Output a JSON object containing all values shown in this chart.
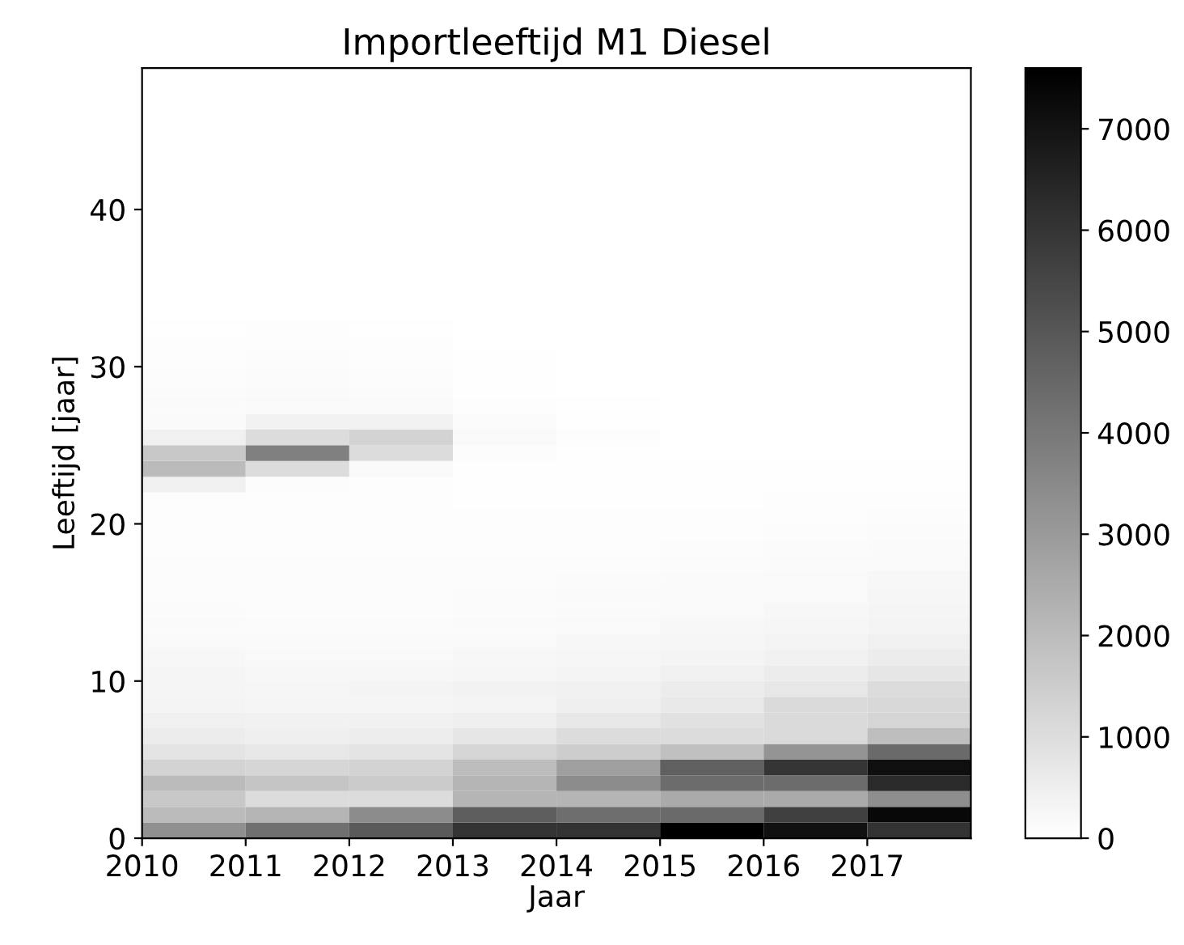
{
  "chart_data": {
    "type": "heatmap",
    "title": "Importleeftijd M1 Diesel",
    "xlabel": "Jaar",
    "ylabel": "Leeftijd [jaar]",
    "x": [
      2010.5,
      2011.5,
      2012.5,
      2013.5,
      2014.5,
      2015.5,
      2016.5,
      2017.5
    ],
    "xlim": [
      2010,
      2018
    ],
    "xticks": [
      2010,
      2011,
      2012,
      2013,
      2014,
      2015,
      2016,
      2017
    ],
    "ylim": [
      0,
      49
    ],
    "yticks": [
      0,
      10,
      20,
      30,
      40
    ],
    "clim": [
      0,
      7600
    ],
    "cticks": [
      0,
      1000,
      2000,
      3000,
      4000,
      5000,
      6000,
      7000
    ],
    "cells": [
      [
        0,
        0,
        0,
        0,
        0,
        0,
        0,
        0
      ],
      [
        0,
        0,
        0,
        0,
        0,
        0,
        0,
        0
      ],
      [
        0,
        0,
        0,
        0,
        0,
        0,
        0,
        0
      ],
      [
        0,
        0,
        0,
        0,
        0,
        0,
        0,
        0
      ],
      [
        0,
        0,
        0,
        0,
        0,
        0,
        0,
        0
      ],
      [
        0,
        0,
        0,
        0,
        0,
        0,
        0,
        0
      ],
      [
        0,
        0,
        0,
        0,
        0,
        0,
        0,
        0
      ],
      [
        0,
        0,
        0,
        0,
        0,
        0,
        0,
        0
      ],
      [
        0,
        0,
        0,
        0,
        0,
        0,
        0,
        0
      ],
      [
        0,
        0,
        0,
        0,
        0,
        0,
        0,
        0
      ],
      [
        0,
        0,
        0,
        0,
        0,
        0,
        0,
        0
      ],
      [
        0,
        0,
        0,
        0,
        0,
        0,
        0,
        0
      ],
      [
        0,
        0,
        0,
        0,
        0,
        0,
        0,
        0
      ],
      [
        0,
        0,
        0,
        0,
        0,
        0,
        0,
        0
      ],
      [
        0,
        0,
        0,
        0,
        0,
        0,
        0,
        0
      ],
      [
        0,
        0,
        0,
        0,
        0,
        0,
        0,
        0
      ],
      [
        40,
        60,
        40,
        0,
        0,
        0,
        0,
        0
      ],
      [
        60,
        80,
        60,
        20,
        0,
        0,
        0,
        0
      ],
      [
        80,
        100,
        80,
        30,
        0,
        0,
        0,
        0
      ],
      [
        100,
        120,
        100,
        40,
        10,
        0,
        0,
        0
      ],
      [
        120,
        150,
        120,
        50,
        20,
        0,
        0,
        0
      ],
      [
        150,
        180,
        150,
        80,
        40,
        10,
        0,
        0
      ],
      [
        150,
        390,
        390,
        120,
        50,
        20,
        0,
        0
      ],
      [
        450,
        1040,
        1310,
        200,
        60,
        20,
        10,
        10
      ],
      [
        1640,
        3790,
        1040,
        100,
        30,
        20,
        20,
        20
      ],
      [
        2030,
        1040,
        150,
        50,
        30,
        30,
        30,
        30
      ],
      [
        450,
        100,
        80,
        50,
        40,
        40,
        40,
        50
      ],
      [
        80,
        70,
        60,
        50,
        50,
        50,
        60,
        80
      ],
      [
        70,
        70,
        60,
        60,
        60,
        60,
        80,
        100
      ],
      [
        80,
        80,
        70,
        70,
        70,
        80,
        100,
        120
      ],
      [
        80,
        80,
        80,
        80,
        80,
        100,
        120,
        150
      ],
      [
        90,
        90,
        90,
        90,
        100,
        120,
        150,
        200
      ],
      [
        100,
        90,
        90,
        100,
        120,
        150,
        180,
        240
      ],
      [
        100,
        100,
        100,
        120,
        150,
        180,
        200,
        270
      ],
      [
        120,
        100,
        100,
        120,
        170,
        200,
        240,
        300
      ],
      [
        150,
        120,
        120,
        150,
        200,
        240,
        270,
        330
      ],
      [
        200,
        150,
        150,
        200,
        240,
        270,
        330,
        450
      ],
      [
        240,
        200,
        200,
        240,
        270,
        330,
        420,
        570
      ],
      [
        300,
        240,
        240,
        270,
        330,
        450,
        570,
        770
      ],
      [
        300,
        270,
        330,
        390,
        450,
        570,
        740,
        1040
      ],
      [
        330,
        300,
        300,
        330,
        480,
        680,
        1100,
        1160
      ],
      [
        450,
        420,
        420,
        480,
        740,
        920,
        1100,
        1250
      ],
      [
        570,
        480,
        540,
        770,
        1040,
        1040,
        1100,
        1940
      ],
      [
        830,
        740,
        830,
        1250,
        1490,
        1880,
        3190,
        4440
      ],
      [
        1310,
        1220,
        1310,
        1970,
        2860,
        4740,
        6020,
        7150
      ],
      [
        2030,
        1730,
        1550,
        2200,
        3430,
        4380,
        4380,
        6350
      ],
      [
        1640,
        1040,
        1040,
        2200,
        2200,
        2530,
        2530,
        3370
      ],
      [
        2030,
        2200,
        3430,
        4800,
        4320,
        4440,
        5690,
        7360
      ],
      [
        3300,
        4260,
        4900,
        6080,
        6080,
        7600,
        7090,
        6080
      ]
    ]
  }
}
